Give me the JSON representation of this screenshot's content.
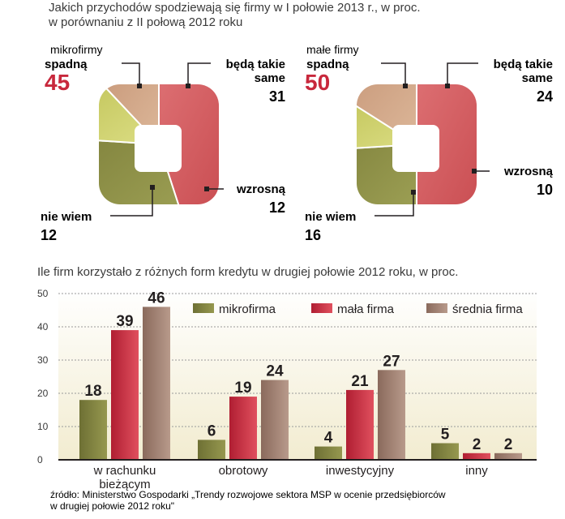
{
  "header": {
    "title_line1": "Jakich przychodów spodziewają się firmy w I połowie 2013 r., w proc.",
    "title_line2": "w porównaniu z II połową 2012 roku"
  },
  "chart_data": [
    {
      "type": "pie",
      "title": "mikrofirmy",
      "slices": [
        {
          "label": "spadną",
          "value": 45,
          "color": "#c8474c"
        },
        {
          "label": "będą takie same",
          "value": 31,
          "color": "#8b8d44"
        },
        {
          "label": "wzrosną",
          "value": 12,
          "color": "#c7c956"
        },
        {
          "label": "nie wiem",
          "value": 12,
          "color": "#c59a7d"
        }
      ]
    },
    {
      "type": "pie",
      "title": "małe firmy",
      "slices": [
        {
          "label": "spadną",
          "value": 50,
          "color": "#c8474c"
        },
        {
          "label": "będą takie same",
          "value": 24,
          "color": "#8b8d44"
        },
        {
          "label": "wzrosną",
          "value": 10,
          "color": "#c7c956"
        },
        {
          "label": "nie wiem",
          "value": 16,
          "color": "#c59a7d"
        }
      ]
    },
    {
      "type": "bar",
      "title": "Ile firm korzystało z różnych form kredytu w drugiej połowie 2012 roku, w proc.",
      "categories": [
        "w rachunku\nbieżącym",
        "obrotowy",
        "inwestycyjny",
        "inny"
      ],
      "series": [
        {
          "name": "mikrofirma",
          "values": [
            18,
            6,
            4,
            5
          ],
          "color": "#7d7f3e"
        },
        {
          "name": "mała firma",
          "values": [
            39,
            19,
            21,
            2
          ],
          "color": "#c8283c"
        },
        {
          "name": "średnia firma",
          "values": [
            46,
            24,
            27,
            2
          ],
          "color": "#9c7b6c"
        }
      ],
      "ylim": [
        0,
        50
      ],
      "yticks": [
        0,
        10,
        20,
        30,
        40,
        50
      ],
      "legend": "top-right"
    }
  ],
  "footer": {
    "source_line1": "źródło: Ministerstwo Gospodarki „Trendy rozwojowe sektora MSP w ocenie przedsiębiorców",
    "source_line2": "w drugiej połowie 2012 roku\""
  }
}
